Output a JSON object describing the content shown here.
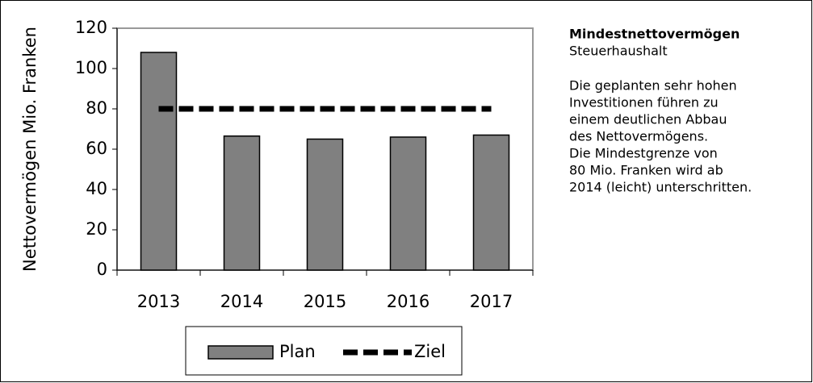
{
  "chart_data": {
    "type": "bar",
    "title": "Mindestnettovermögen",
    "subtitle": "Steuerhaushalt",
    "annotations": [
      "Die geplanten sehr hohen",
      "Investitionen führen zu",
      "einem deutlichen Abbau",
      "des Nettovermögens.",
      "Die Mindestgrenze von",
      "80 Mio. Franken wird ab",
      "2014 (leicht) unterschritten."
    ],
    "y_label": "Nettovermögen Mio. Franken",
    "categories": [
      "2013",
      "2014",
      "2015",
      "2016",
      "2017"
    ],
    "series": [
      {
        "name": "Plan",
        "type": "bar",
        "color": "#808080",
        "values": [
          108,
          66.5,
          65,
          66,
          67
        ]
      },
      {
        "name": "Ziel",
        "type": "line",
        "color": "#000000",
        "dashed": true,
        "values": [
          80,
          80,
          80,
          80,
          80
        ]
      }
    ],
    "ylim": [
      0,
      120
    ],
    "yticks": [
      0,
      20,
      40,
      60,
      80,
      100,
      120
    ],
    "grid": false,
    "legend": "bottom"
  }
}
